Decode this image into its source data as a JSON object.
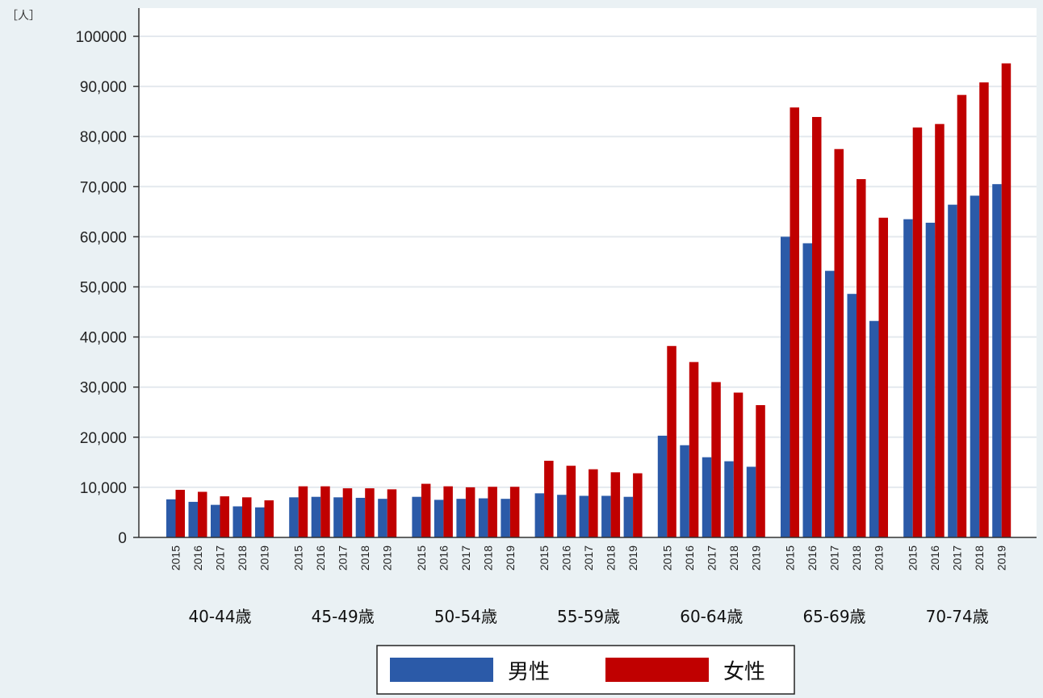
{
  "chart_data": {
    "type": "bar",
    "unit_label": "［人］",
    "groups": [
      "40-44歳",
      "45-49歳",
      "50-54歳",
      "55-59歳",
      "60-64歳",
      "65-69歳",
      "70-74歳"
    ],
    "years": [
      "2015",
      "2016",
      "2017",
      "2018",
      "2019"
    ],
    "yticks": [
      "0",
      "10,000",
      "20,000",
      "30,000",
      "40,000",
      "50,000",
      "60,000",
      "70,000",
      "80,000",
      "90,000",
      "100000"
    ],
    "ylim": [
      0,
      100000
    ],
    "grid": true,
    "legend_position": "bottom",
    "series": [
      {
        "name": "男性",
        "color": "#2b5aa8",
        "values": [
          [
            7600,
            7100,
            6500,
            6200,
            6000
          ],
          [
            8000,
            8100,
            8000,
            7900,
            7700
          ],
          [
            8100,
            7500,
            7700,
            7800,
            7700
          ],
          [
            8800,
            8500,
            8300,
            8300,
            8100
          ],
          [
            20300,
            18400,
            16000,
            15200,
            14100
          ],
          [
            60000,
            58700,
            53200,
            48600,
            43200
          ],
          [
            63500,
            62800,
            66400,
            68200,
            70500
          ]
        ]
      },
      {
        "name": "女性",
        "color": "#c00000",
        "values": [
          [
            9500,
            9100,
            8200,
            8000,
            7400
          ],
          [
            10200,
            10200,
            9800,
            9800,
            9600
          ],
          [
            10700,
            10200,
            10000,
            10100,
            10100
          ],
          [
            15300,
            14300,
            13600,
            13000,
            12800
          ],
          [
            38200,
            35000,
            31000,
            28900,
            26400
          ],
          [
            85800,
            83900,
            77500,
            71500,
            63800
          ],
          [
            81800,
            82500,
            88300,
            90800,
            94600
          ]
        ]
      }
    ]
  }
}
